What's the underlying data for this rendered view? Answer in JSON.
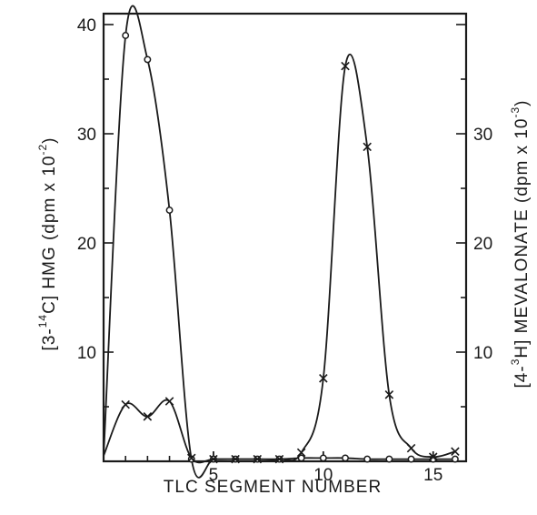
{
  "chart_data": {
    "type": "line",
    "xlabel": "TLC SEGMENT NUMBER",
    "ylabel_left": {
      "parts": [
        "[3-",
        "14",
        "C] HMG   (dpm x 10",
        "-2",
        ")"
      ]
    },
    "ylabel_right": {
      "parts": [
        "[4-",
        "3",
        "H] MEVALONATE  (dpm x 10",
        "-3",
        ")"
      ]
    },
    "xlim": [
      0,
      16.5
    ],
    "ylim_left": [
      0,
      41
    ],
    "ylim_right": [
      0,
      41
    ],
    "x_ticks": [
      "5",
      "10",
      "15"
    ],
    "y_left_ticks": [
      "10",
      "20",
      "30",
      "40"
    ],
    "y_right_ticks": [
      "10",
      "20",
      "30"
    ],
    "series": [
      {
        "marker": "circle",
        "axis": "left",
        "x": [
          0,
          1,
          2,
          3,
          4,
          5,
          6,
          7,
          8,
          9,
          10,
          11,
          12,
          13,
          14,
          15,
          16
        ],
        "y": [
          0.5,
          39,
          36.8,
          23,
          0.2,
          0.2,
          0.2,
          0.2,
          0.2,
          0.3,
          0.3,
          0.3,
          0.2,
          0.2,
          0.2,
          0.2,
          0.2
        ]
      },
      {
        "marker": "x",
        "axis": "right",
        "x": [
          0,
          1,
          2,
          3,
          4,
          5,
          6,
          7,
          8,
          9,
          10,
          11,
          12,
          13,
          14,
          15,
          16
        ],
        "y": [
          0.5,
          5.2,
          4.1,
          5.5,
          0.3,
          0.2,
          0.2,
          0.2,
          0.2,
          0.8,
          7.6,
          36.2,
          28.8,
          6.1,
          1.2,
          0.4,
          0.9
        ]
      }
    ],
    "colors": {
      "ink": "#1a1a1a",
      "background": "#ffffff"
    }
  }
}
